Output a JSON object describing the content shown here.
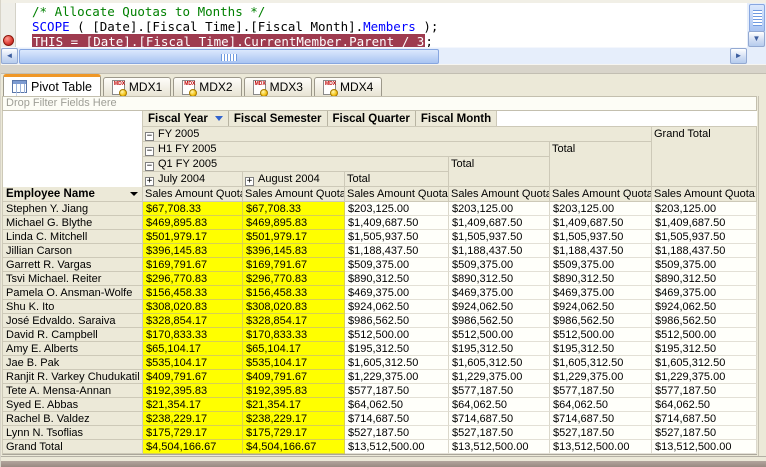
{
  "colors": {
    "breakpoint_line_bg": "#9e3b4f",
    "comment_green": "#008000",
    "keyword_blue": "#0000ff",
    "month_cell_yellow": "#ffff00",
    "header_beige": "#ece9d8",
    "active_tab_accent": "#ef9727"
  },
  "code_editor": {
    "line1_comment": "/* Allocate Quotas to Months */",
    "line2_keyword": "SCOPE",
    "line2_mid": " ( [Date].[Fiscal Time].[Fiscal Month].",
    "line2_function": "Members",
    "line2_end": " );",
    "line3_highlighted": "THIS = [Date].[Fiscal Time].CurrentMember.Parent / 3",
    "line3_suffix": ";"
  },
  "icons": {
    "mdx_badge": "MDX"
  },
  "tabs": {
    "items": [
      {
        "label": "Pivot Table",
        "active": true
      },
      {
        "label": "MDX1",
        "active": false
      },
      {
        "label": "MDX2",
        "active": false
      },
      {
        "label": "MDX3",
        "active": false
      },
      {
        "label": "MDX4",
        "active": false
      }
    ]
  },
  "pivot_table": {
    "filter_area_label": "Drop Filter Fields Here",
    "column_fields": [
      {
        "label": "Fiscal Year"
      },
      {
        "label": "Fiscal Semester"
      },
      {
        "label": "Fiscal Quarter"
      },
      {
        "label": "Fiscal Month"
      }
    ],
    "row_field": "Employee Name",
    "measure_label": "Sales Amount Quota",
    "column_headers": {
      "fiscal_year": "FY 2005",
      "semester": "H1 FY 2005",
      "quarter": "Q1 FY 2005",
      "month_1": "July 2004",
      "month_2": "August 2004",
      "quarter_total": "Total",
      "semester_total": "Total",
      "year_total": "Total",
      "grand_total": "Grand Total"
    },
    "rows": [
      {
        "name": "Stephen Y. Jiang",
        "values": [
          "$67,708.33",
          "$67,708.33",
          "$203,125.00",
          "$203,125.00",
          "$203,125.00",
          "$203,125.00"
        ]
      },
      {
        "name": "Michael G. Blythe",
        "values": [
          "$469,895.83",
          "$469,895.83",
          "$1,409,687.50",
          "$1,409,687.50",
          "$1,409,687.50",
          "$1,409,687.50"
        ]
      },
      {
        "name": "Linda C. Mitchell",
        "values": [
          "$501,979.17",
          "$501,979.17",
          "$1,505,937.50",
          "$1,505,937.50",
          "$1,505,937.50",
          "$1,505,937.50"
        ]
      },
      {
        "name": "Jillian Carson",
        "values": [
          "$396,145.83",
          "$396,145.83",
          "$1,188,437.50",
          "$1,188,437.50",
          "$1,188,437.50",
          "$1,188,437.50"
        ]
      },
      {
        "name": "Garrett R. Vargas",
        "values": [
          "$169,791.67",
          "$169,791.67",
          "$509,375.00",
          "$509,375.00",
          "$509,375.00",
          "$509,375.00"
        ]
      },
      {
        "name": "Tsvi Michael. Reiter",
        "values": [
          "$296,770.83",
          "$296,770.83",
          "$890,312.50",
          "$890,312.50",
          "$890,312.50",
          "$890,312.50"
        ]
      },
      {
        "name": "Pamela O. Ansman-Wolfe",
        "values": [
          "$156,458.33",
          "$156,458.33",
          "$469,375.00",
          "$469,375.00",
          "$469,375.00",
          "$469,375.00"
        ]
      },
      {
        "name": "Shu K. Ito",
        "values": [
          "$308,020.83",
          "$308,020.83",
          "$924,062.50",
          "$924,062.50",
          "$924,062.50",
          "$924,062.50"
        ]
      },
      {
        "name": "José Edvaldo. Saraiva",
        "values": [
          "$328,854.17",
          "$328,854.17",
          "$986,562.50",
          "$986,562.50",
          "$986,562.50",
          "$986,562.50"
        ]
      },
      {
        "name": "David R. Campbell",
        "values": [
          "$170,833.33",
          "$170,833.33",
          "$512,500.00",
          "$512,500.00",
          "$512,500.00",
          "$512,500.00"
        ]
      },
      {
        "name": "Amy E. Alberts",
        "values": [
          "$65,104.17",
          "$65,104.17",
          "$195,312.50",
          "$195,312.50",
          "$195,312.50",
          "$195,312.50"
        ]
      },
      {
        "name": "Jae B. Pak",
        "values": [
          "$535,104.17",
          "$535,104.17",
          "$1,605,312.50",
          "$1,605,312.50",
          "$1,605,312.50",
          "$1,605,312.50"
        ]
      },
      {
        "name": "Ranjit R. Varkey Chudukatil",
        "values": [
          "$409,791.67",
          "$409,791.67",
          "$1,229,375.00",
          "$1,229,375.00",
          "$1,229,375.00",
          "$1,229,375.00"
        ]
      },
      {
        "name": "Tete A. Mensa-Annan",
        "values": [
          "$192,395.83",
          "$192,395.83",
          "$577,187.50",
          "$577,187.50",
          "$577,187.50",
          "$577,187.50"
        ]
      },
      {
        "name": "Syed E. Abbas",
        "values": [
          "$21,354.17",
          "$21,354.17",
          "$64,062.50",
          "$64,062.50",
          "$64,062.50",
          "$64,062.50"
        ]
      },
      {
        "name": "Rachel B. Valdez",
        "values": [
          "$238,229.17",
          "$238,229.17",
          "$714,687.50",
          "$714,687.50",
          "$714,687.50",
          "$714,687.50"
        ]
      },
      {
        "name": "Lynn N. Tsoflias",
        "values": [
          "$175,729.17",
          "$175,729.17",
          "$527,187.50",
          "$527,187.50",
          "$527,187.50",
          "$527,187.50"
        ]
      },
      {
        "name": "Grand Total",
        "values": [
          "$4,504,166.67",
          "$4,504,166.67",
          "$13,512,500.00",
          "$13,512,500.00",
          "$13,512,500.00",
          "$13,512,500.00"
        ]
      }
    ]
  }
}
